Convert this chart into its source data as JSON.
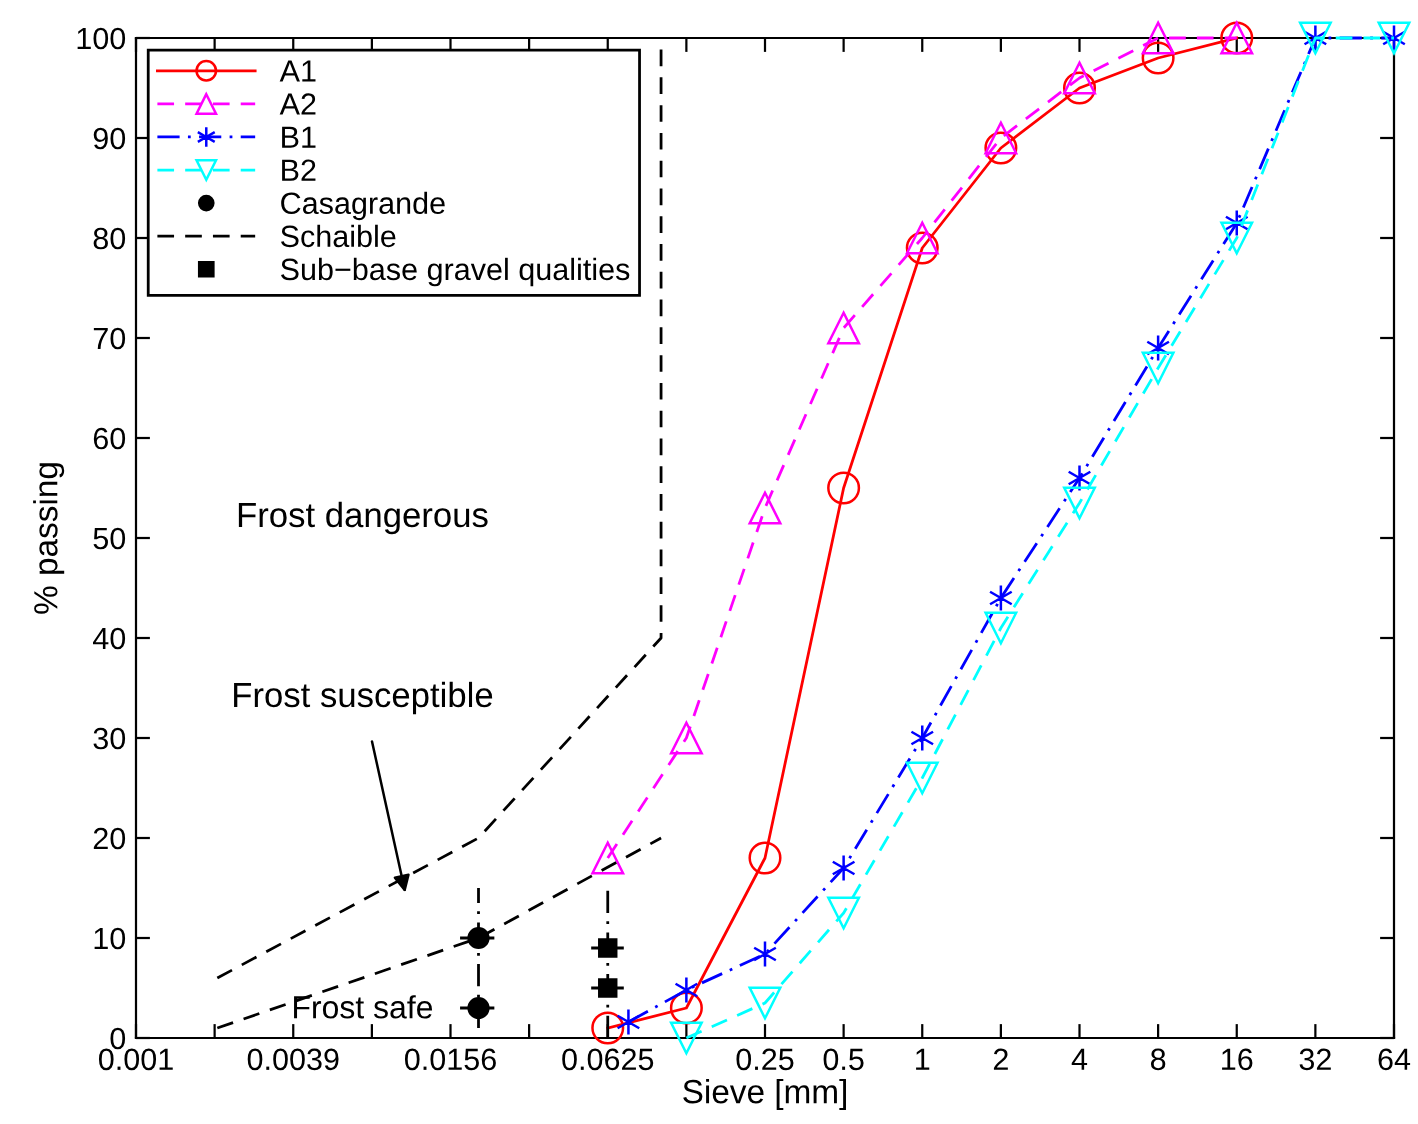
{
  "chart_data": {
    "type": "line",
    "xlabel": "Sieve [mm]",
    "ylabel": "% passing",
    "log": "x",
    "xlim": [
      0.0009765625,
      64
    ],
    "xticks": [
      {
        "value": 0.0009765625,
        "label": "0.001"
      },
      {
        "value": 0.001953125,
        "label": null
      },
      {
        "value": 0.00390625,
        "label": "0.0039"
      },
      {
        "value": 0.0078125,
        "label": null
      },
      {
        "value": 0.015625,
        "label": "0.0156"
      },
      {
        "value": 0.03125,
        "label": null
      },
      {
        "value": 0.0625,
        "label": "0.0625"
      },
      {
        "value": 0.125,
        "label": null
      },
      0.25,
      0.5,
      1,
      2,
      4,
      8,
      16,
      32,
      64
    ],
    "ylim": [
      0,
      100
    ],
    "yticks": [
      0,
      10,
      20,
      30,
      40,
      50,
      60,
      70,
      80,
      90,
      100
    ],
    "grid": false,
    "legend": "top left",
    "series": [
      {
        "name": "A1",
        "color": "#ff0000",
        "marker": "circle",
        "line_style": "solid",
        "x": [
          0.0625,
          0.125,
          0.25,
          0.5,
          1,
          2,
          4,
          8,
          16
        ],
        "values": [
          1,
          3,
          18,
          55,
          79,
          89,
          95,
          98,
          100
        ]
      },
      {
        "name": "A2",
        "color": "#ff00ff",
        "marker": "triangle",
        "line_style": "dashed",
        "x": [
          0.0625,
          0.125,
          0.25,
          0.5,
          1,
          2,
          4,
          8,
          16
        ],
        "values": [
          18,
          30,
          53,
          71,
          80,
          90,
          96,
          100,
          100
        ]
      },
      {
        "name": "B1",
        "color": "#0000ff",
        "marker": "cross",
        "line_style": "dashdot",
        "x": [
          0.075,
          0.125,
          0.25,
          0.5,
          1,
          2,
          4,
          8,
          16,
          32,
          64
        ],
        "values": [
          1.6,
          4.8,
          8.4,
          17,
          30,
          44,
          56,
          69,
          81.5,
          100,
          100
        ]
      },
      {
        "name": "B2",
        "color": "#00ffff",
        "marker": "triangle_down",
        "line_style": "dashed",
        "x": [
          0.125,
          0.25,
          0.5,
          1,
          2,
          4,
          8,
          16,
          32,
          64
        ],
        "values": [
          0,
          3.5,
          12.5,
          26,
          41,
          53.5,
          67,
          80,
          100,
          100
        ]
      },
      {
        "name": "Casagrande",
        "type": "scatter",
        "color": "#000000",
        "marker": "circle",
        "x": [
          0.02,
          0.02
        ],
        "values": [
          10,
          3
        ],
        "xerrors": [
          [
            0.017,
            0.023
          ],
          [
            0.017,
            0.023
          ]
        ]
      },
      {
        "name": "Schaible",
        "color": "#000000",
        "marker": "none",
        "line_style": "dashed",
        "x": [
          0.002,
          0.02,
          0.1,
          0.1
        ],
        "values": [
          6,
          20,
          40,
          100
        ]
      },
      {
        "color": "#000000",
        "marker": "none",
        "line_style": "dashed",
        "x": [
          0.002,
          0.02,
          0.1
        ],
        "values": [
          1,
          10,
          20
        ]
      },
      {
        "name": "Sub−base gravel qualities",
        "type": "scatter",
        "color": "#000000",
        "marker": "square",
        "x": [
          0.0625,
          0.0625
        ],
        "values": [
          9,
          5
        ],
        "xerrors": [
          [
            0.054,
            0.072
          ],
          [
            0.054,
            0.072
          ]
        ]
      },
      {
        "color": "#000000",
        "marker": "none",
        "line_style": "dashdot",
        "x": [
          0.02,
          0.02
        ],
        "values": [
          1,
          15
        ]
      },
      {
        "color": "#000000",
        "marker": "none",
        "line_style": "dashdot",
        "x": [
          0.0625,
          0.0625
        ],
        "values": [
          0,
          15
        ]
      }
    ],
    "annotations": [
      "Frost dangerous",
      "Frost susceptible",
      "Frost safe"
    ]
  }
}
